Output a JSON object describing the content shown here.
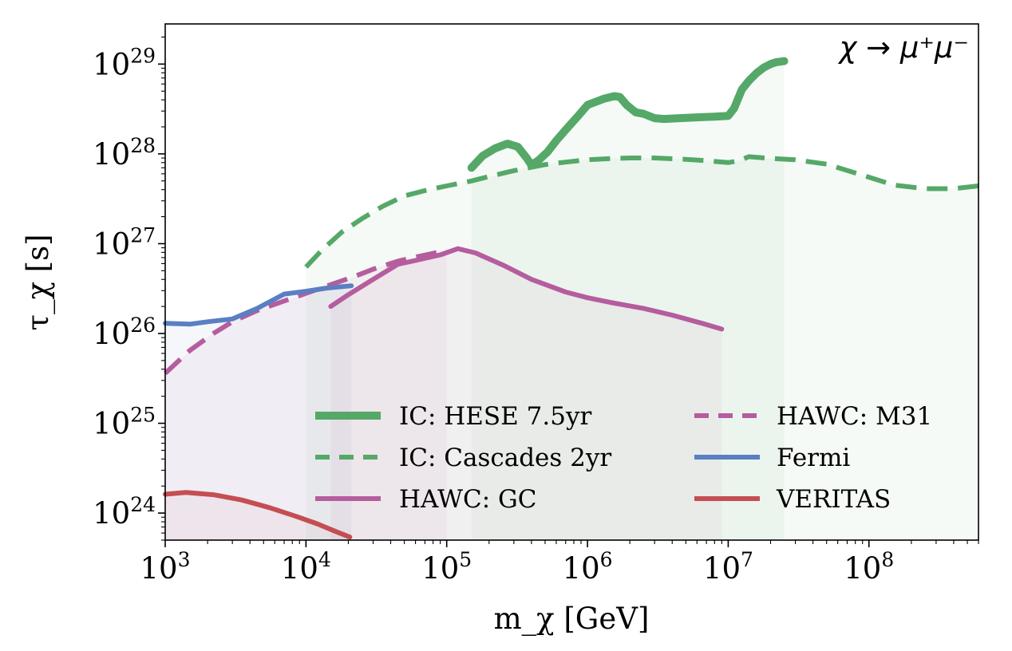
{
  "chart_data": {
    "type": "line",
    "title": "",
    "annotation": "χ → μ⁺μ⁻",
    "xlabel": "m_χ [GeV]",
    "ylabel": "τ_χ [s]",
    "xscale": "log",
    "yscale": "log",
    "xlim": [
      1000,
      600000000
    ],
    "ylim": [
      5e+23,
      2.8e+29
    ],
    "x_ticks": [
      {
        "value": 1000,
        "base": "10",
        "exp": "3"
      },
      {
        "value": 10000,
        "base": "10",
        "exp": "4"
      },
      {
        "value": 100000,
        "base": "10",
        "exp": "5"
      },
      {
        "value": 1000000,
        "base": "10",
        "exp": "6"
      },
      {
        "value": 10000000,
        "base": "10",
        "exp": "7"
      },
      {
        "value": 100000000,
        "base": "10",
        "exp": "8"
      }
    ],
    "y_ticks": [
      {
        "value": 1e+24,
        "base": "10",
        "exp": "24"
      },
      {
        "value": 1e+25,
        "base": "10",
        "exp": "25"
      },
      {
        "value": 1e+26,
        "base": "10",
        "exp": "26"
      },
      {
        "value": 1e+27,
        "base": "10",
        "exp": "27"
      },
      {
        "value": 1e+28,
        "base": "10",
        "exp": "28"
      },
      {
        "value": 1e+29,
        "base": "10",
        "exp": "29"
      }
    ],
    "grid": false,
    "legend_position": "bottom-center, two columns",
    "series": [
      {
        "name": "IC: HESE 7.5yr",
        "color": "#55a868",
        "style": "solid",
        "weight": "thick",
        "x": [
          150000,
          180000,
          220000,
          270000,
          320000,
          370000,
          400000,
          450000,
          520000,
          600000,
          700000,
          850000,
          1000000,
          1300000,
          1550000,
          1700000,
          1900000,
          2200000,
          2500000,
          3000000,
          3500000,
          4500000,
          6000000,
          8000000,
          10000000,
          11000000,
          12500000,
          14000000,
          16000000,
          18000000,
          20000000,
          22000000,
          25000000
        ],
        "y": [
          7e+27,
          9.5e+27,
          1.15e+28,
          1.3e+28,
          1.2e+28,
          9e+27,
          7.5e+27,
          8.5e+27,
          1.05e+28,
          1.4e+28,
          1.85e+28,
          2.6e+28,
          3.5e+28,
          4.1e+28,
          4.4e+28,
          4.3e+28,
          3.5e+28,
          2.9e+28,
          2.8e+28,
          2.5e+28,
          2.45e+28,
          2.5e+28,
          2.55e+28,
          2.6e+28,
          2.65e+28,
          3.2e+28,
          5.2e+28,
          6.5e+28,
          8e+28,
          9.2e+28,
          1e+29,
          1.05e+29,
          1.08e+29
        ]
      },
      {
        "name": "IC: Cascades 2yr",
        "color": "#55a868",
        "style": "dashed",
        "weight": "medium",
        "x": [
          10000,
          13000,
          18000,
          25000,
          35000,
          50000,
          70000,
          100000,
          150000,
          200000,
          300000,
          500000,
          700000,
          1000000,
          1500000,
          2000000,
          3000000,
          5000000,
          7000000,
          10000000,
          12000000,
          14000000,
          20000000,
          30000000,
          50000000,
          100000000,
          150000000,
          250000000,
          400000000,
          600000000
        ],
        "y": [
          5.5e+26,
          8.5e+26,
          1.35e+27,
          1.9e+27,
          2.6e+27,
          3.4e+27,
          3.9e+27,
          4.4e+27,
          5e+27,
          5.6e+27,
          6.5e+27,
          7.6e+27,
          8.1e+27,
          8.6e+27,
          8.9e+27,
          9e+27,
          9e+27,
          8.7e+27,
          8.4e+27,
          8e+27,
          8.4e+27,
          9.3e+27,
          8.9e+27,
          8.6e+27,
          7.7e+27,
          5.5e+27,
          4.5e+27,
          4.1e+27,
          4.1e+27,
          4.4e+27
        ]
      },
      {
        "name": "HAWC: GC",
        "color": "#b55d9e",
        "style": "solid",
        "weight": "medium",
        "x": [
          15000,
          20000,
          30000,
          45000,
          60000,
          90000,
          120000,
          160000,
          250000,
          400000,
          700000,
          1000000,
          1500000,
          2500000,
          4000000,
          6500000,
          9000000
        ],
        "y": [
          2e+26,
          2.7e+26,
          4e+26,
          5.9e+26,
          6.5e+26,
          7.5e+26,
          8.8e+26,
          7.9e+26,
          5.8e+26,
          4e+26,
          2.9e+26,
          2.5e+26,
          2.2e+26,
          1.9e+26,
          1.6e+26,
          1.3e+26,
          1.12e+26
        ]
      },
      {
        "name": "HAWC: M31",
        "color": "#b55d9e",
        "style": "dashed",
        "weight": "medium",
        "x": [
          1000,
          1500,
          2200,
          3000,
          4500,
          7000,
          10000,
          15000,
          22000,
          30000,
          45000,
          60000,
          80000,
          100000
        ],
        "y": [
          3.6e+25,
          6.5e+25,
          1e+26,
          1.35e+26,
          1.8e+26,
          2.3e+26,
          2.8e+26,
          3.5e+26,
          4.3e+26,
          5.2e+26,
          6.4e+26,
          7.1e+26,
          7.8e+26,
          8.5e+26
        ]
      },
      {
        "name": "Fermi",
        "color": "#5a7fc2",
        "style": "solid",
        "weight": "medium",
        "x": [
          1000,
          1500,
          2000,
          3000,
          4500,
          7000,
          10000,
          14000,
          21000
        ],
        "y": [
          1.3e+26,
          1.27e+26,
          1.35e+26,
          1.45e+26,
          1.9e+26,
          2.75e+26,
          2.95e+26,
          3.2e+26,
          3.4e+26
        ]
      },
      {
        "name": "VERITAS",
        "color": "#c44e52",
        "style": "solid",
        "weight": "medium",
        "x": [
          1000,
          1400,
          2200,
          3500,
          5500,
          8500,
          12000,
          16000,
          20500
        ],
        "y": [
          1.62e+24,
          1.7e+24,
          1.6e+24,
          1.4e+24,
          1.15e+24,
          9.2e+23,
          7.6e+23,
          6.3e+23,
          5.4e+23
        ]
      }
    ],
    "shaded_regions": [
      {
        "series": "IC: HESE 7.5yr",
        "color": "#55a868",
        "opacity": 0.06,
        "x_range": [
          150000,
          25000000
        ]
      },
      {
        "series": "IC: Cascades 2yr",
        "color": "#55a868",
        "opacity": 0.06,
        "x_range": [
          10000,
          600000000
        ]
      },
      {
        "series": "HAWC: GC",
        "color": "#b55d9e",
        "opacity": 0.06,
        "x_range": [
          15000,
          9000000
        ]
      },
      {
        "series": "HAWC: M31",
        "color": "#b55d9e",
        "opacity": 0.06,
        "x_range": [
          1000,
          100000
        ]
      },
      {
        "series": "Fermi",
        "color": "#5a7fc2",
        "opacity": 0.06,
        "x_range": [
          1000,
          21000
        ]
      },
      {
        "series": "VERITAS",
        "color": "#c44e52",
        "opacity": 0.05,
        "x_range": [
          1000,
          20500
        ]
      }
    ]
  }
}
